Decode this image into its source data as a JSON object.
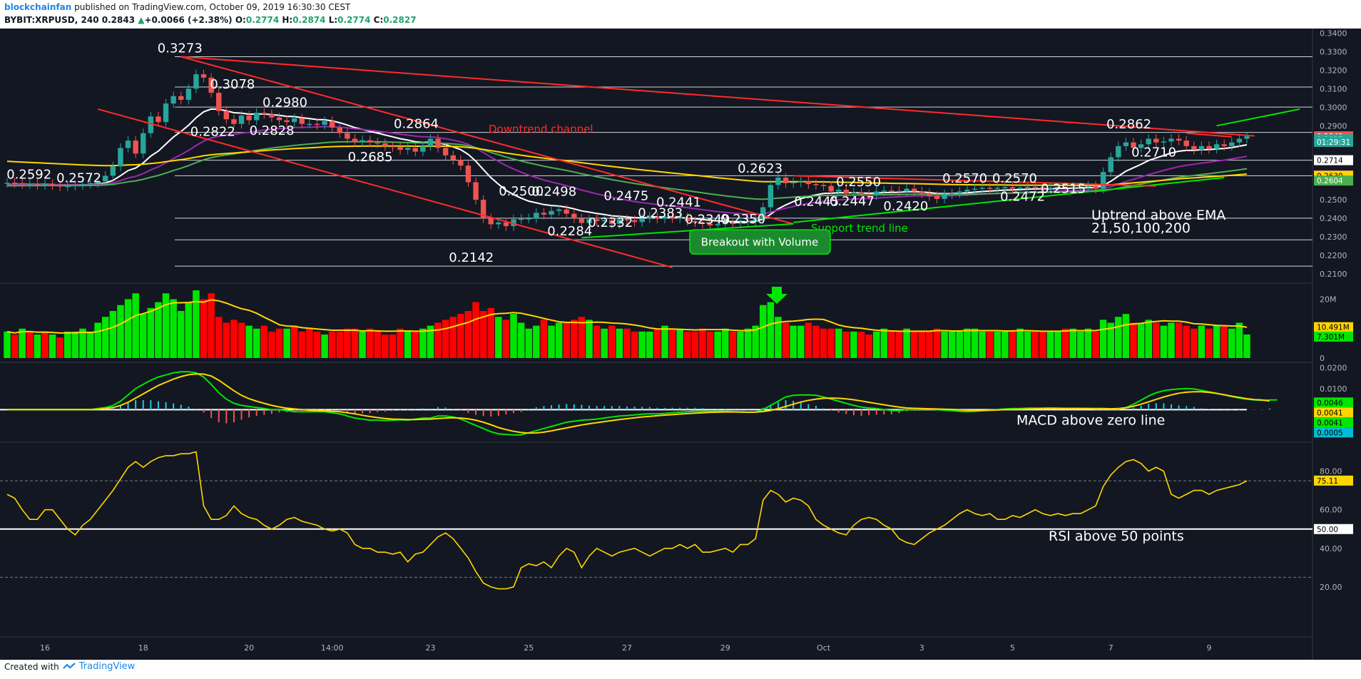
{
  "header": {
    "author": "blockchainfan",
    "published": "published on TradingView.com, October 09, 2019 16:30:30 CEST",
    "symbol": "BYBIT:XRPUSD, 240",
    "price": "0.2843",
    "change_arrow": "▲",
    "change": "+0.0066 (+2.38%)",
    "o_label": "O:",
    "o": "0.2774",
    "h_label": "H:",
    "h": "0.2874",
    "l_label": "L:",
    "l": "0.2774",
    "c_label": "C:",
    "c": "0.2827"
  },
  "footer": {
    "created_with": "Created with",
    "brand": "TradingView",
    "brand_icon": "tradingview-logo-icon"
  },
  "colors": {
    "background": "#131722",
    "up": "#26a69a",
    "down": "#ef5350",
    "vol_up": "#00e600",
    "vol_down": "#ff0000",
    "ema21": "#ffffff",
    "ema50": "#9c27b0",
    "ema100": "#4caf50",
    "ema200": "#ffd600",
    "trend_red": "#ff2b2b",
    "trend_green": "#00e600",
    "rsi": "#ffd600"
  },
  "chart_data": [
    {
      "type": "candlestick",
      "pane": "price",
      "ylim": [
        0.205,
        0.3425
      ],
      "y_ticks": [
        "0.3400",
        "0.3300",
        "0.3200",
        "0.3100",
        "0.3000",
        "0.2900",
        "0.2500",
        "0.2400",
        "0.2300",
        "0.2200",
        "0.2100"
      ],
      "x_ticks": [
        "16",
        "18",
        "20",
        "14:00",
        "23",
        "25",
        "27",
        "29",
        "Oct",
        "3",
        "5",
        "7",
        "9"
      ],
      "ohlc_close": [
        0.2592,
        0.259,
        0.2585,
        0.2588,
        0.258,
        0.2585,
        0.2578,
        0.2572,
        0.2575,
        0.258,
        0.2585,
        0.259,
        0.26,
        0.263,
        0.268,
        0.278,
        0.282,
        0.275,
        0.286,
        0.295,
        0.292,
        0.302,
        0.306,
        0.304,
        0.31,
        0.3178,
        0.316,
        0.3078,
        0.298,
        0.2935,
        0.291,
        0.2955,
        0.293,
        0.297,
        0.2962,
        0.2945,
        0.293,
        0.292,
        0.294,
        0.291,
        0.291,
        0.2905,
        0.2925,
        0.289,
        0.286,
        0.283,
        0.2812,
        0.2822,
        0.281,
        0.2805,
        0.279,
        0.2785,
        0.277,
        0.278,
        0.276,
        0.279,
        0.283,
        0.278,
        0.274,
        0.2715,
        0.2685,
        0.2595,
        0.25,
        0.24,
        0.2368,
        0.2378,
        0.2358,
        0.2395,
        0.2398,
        0.24,
        0.243,
        0.242,
        0.244,
        0.2448,
        0.2425,
        0.24,
        0.2375,
        0.2395,
        0.2385,
        0.239,
        0.237,
        0.2395,
        0.239,
        0.238,
        0.24,
        0.241,
        0.2398,
        0.241,
        0.24,
        0.2405,
        0.2385,
        0.2378,
        0.237,
        0.2362,
        0.2368,
        0.2375,
        0.2372,
        0.238,
        0.2385,
        0.2395,
        0.246,
        0.258,
        0.262,
        0.259,
        0.2595,
        0.26,
        0.2585,
        0.258,
        0.2575,
        0.2545,
        0.2555,
        0.2535,
        0.254,
        0.253,
        0.2525,
        0.2545,
        0.255,
        0.2548,
        0.2545,
        0.256,
        0.2545,
        0.2535,
        0.252,
        0.2505,
        0.253,
        0.2535,
        0.2545,
        0.2555,
        0.256,
        0.2565,
        0.256,
        0.2565,
        0.2568,
        0.256,
        0.2565,
        0.257,
        0.2568,
        0.256,
        0.2565,
        0.257,
        0.2565,
        0.257,
        0.257,
        0.2575,
        0.256,
        0.265,
        0.273,
        0.279,
        0.281,
        0.278,
        0.28,
        0.283,
        0.281,
        0.2815,
        0.283,
        0.282,
        0.279,
        0.277,
        0.279,
        0.2775,
        0.28,
        0.279,
        0.281,
        0.283,
        0.2843
      ],
      "horizontal_levels": [
        0.3273,
        0.3109,
        0.3001,
        0.2864,
        0.2714,
        0.263,
        0.2401,
        0.2284,
        0.2142
      ],
      "ema_last": {
        "EMA21": "0.2714",
        "EMA50": "0.2632",
        "EMA100": "0.2604",
        "EMA200": "0.2630"
      },
      "price_tags": [
        "0.2843",
        "0.2827",
        "01:29:31",
        "0.2714",
        "0.2632",
        "0.2630",
        "0.2604"
      ],
      "level_labels": [
        {
          "text": "0.3273",
          "x": 0.12,
          "y": 0.3273
        },
        {
          "text": "0.3078",
          "x": 0.16,
          "y": 0.3078
        },
        {
          "text": "0.2980",
          "x": 0.2,
          "y": 0.298
        },
        {
          "text": "0.2864",
          "x": 0.3,
          "y": 0.2864
        },
        {
          "text": "0.2822",
          "x": 0.145,
          "y": 0.2822
        },
        {
          "text": "0.2828",
          "x": 0.19,
          "y": 0.2828
        },
        {
          "text": "0.2685",
          "x": 0.265,
          "y": 0.2685
        },
        {
          "text": "0.2592",
          "x": 0.005,
          "y": 0.2592
        },
        {
          "text": "0.2572",
          "x": 0.043,
          "y": 0.2572
        },
        {
          "text": "0.2500",
          "x": 0.38,
          "y": 0.25
        },
        {
          "text": "0.2498",
          "x": 0.405,
          "y": 0.2498
        },
        {
          "text": "0.2475",
          "x": 0.46,
          "y": 0.2475
        },
        {
          "text": "0.2441",
          "x": 0.5,
          "y": 0.2441
        },
        {
          "text": "0.2383",
          "x": 0.486,
          "y": 0.2383
        },
        {
          "text": "0.2332",
          "x": 0.448,
          "y": 0.2332
        },
        {
          "text": "0.2284",
          "x": 0.417,
          "y": 0.2284
        },
        {
          "text": "0.2349",
          "x": 0.522,
          "y": 0.2349
        },
        {
          "text": "0.2350",
          "x": 0.549,
          "y": 0.235
        },
        {
          "text": "0.2142",
          "x": 0.342,
          "y": 0.2142
        },
        {
          "text": "0.2623",
          "x": 0.562,
          "y": 0.2623
        },
        {
          "text": "0.2550",
          "x": 0.637,
          "y": 0.255
        },
        {
          "text": "0.2445",
          "x": 0.605,
          "y": 0.2445
        },
        {
          "text": "0.2447",
          "x": 0.632,
          "y": 0.2447
        },
        {
          "text": "0.2420",
          "x": 0.673,
          "y": 0.242
        },
        {
          "text": "0.2570",
          "x": 0.718,
          "y": 0.257
        },
        {
          "text": "0.2570",
          "x": 0.756,
          "y": 0.257
        },
        {
          "text": "0.2472",
          "x": 0.762,
          "y": 0.2472
        },
        {
          "text": "0.2515",
          "x": 0.793,
          "y": 0.2515
        },
        {
          "text": "0.2862",
          "x": 0.843,
          "y": 0.2862
        },
        {
          "text": "0.2710",
          "x": 0.862,
          "y": 0.271
        }
      ],
      "annotations": {
        "downtrend": "Downtrend channel",
        "support": "Support trend line",
        "breakout": "Breakout with Volume",
        "uptrend_line1": "Uptrend above EMA",
        "uptrend_line2": "21,50,100,200"
      }
    },
    {
      "type": "bar",
      "pane": "volume",
      "y_ticks": [
        "20M",
        "0"
      ],
      "ylim": [
        0,
        24000000
      ],
      "tags": [
        "10.491M",
        "7.301M"
      ],
      "values": [
        9,
        8,
        10,
        9,
        8,
        9,
        8,
        7,
        9,
        9,
        10,
        9,
        12,
        14,
        16,
        18,
        20,
        22,
        15,
        17,
        19,
        22,
        20,
        16,
        19,
        23,
        20,
        22,
        14,
        12,
        13,
        12,
        11,
        10,
        11,
        9,
        10,
        10,
        11,
        9,
        10,
        9,
        8,
        9,
        9,
        10,
        10,
        9,
        10,
        9,
        8,
        8,
        10,
        9,
        9,
        10,
        11,
        12,
        13,
        14,
        15,
        16,
        19,
        16,
        17,
        14,
        13,
        15,
        12,
        10,
        11,
        13,
        11,
        12,
        12,
        13,
        14,
        13,
        11,
        10,
        11,
        10,
        10,
        9,
        9,
        9,
        10,
        11,
        10,
        10,
        9,
        9,
        10,
        9,
        9,
        10,
        9,
        9,
        10,
        11,
        18,
        19,
        14,
        12,
        11,
        11,
        12,
        11,
        10,
        10,
        10,
        9,
        9,
        9,
        8,
        9,
        10,
        9,
        9,
        10,
        9,
        9,
        9,
        10,
        9,
        9,
        9,
        10,
        10,
        9,
        9,
        9,
        9,
        9,
        10,
        9,
        9,
        9,
        9,
        9,
        10,
        10,
        9,
        10,
        9,
        13,
        12,
        14,
        15,
        12,
        12,
        13,
        12,
        11,
        12,
        12,
        11,
        10,
        11,
        10,
        11,
        11,
        10,
        12,
        8
      ],
      "up": [
        1,
        0,
        1,
        0,
        1,
        0,
        1,
        0,
        1,
        1,
        1,
        1,
        1,
        1,
        1,
        1,
        1,
        1,
        1,
        1,
        1,
        1,
        1,
        1,
        1,
        1,
        0,
        0,
        0,
        0,
        0,
        0,
        1,
        1,
        0,
        0,
        0,
        1,
        0,
        0,
        0,
        0,
        1,
        0,
        0,
        0,
        0,
        1,
        0,
        0,
        0,
        0,
        0,
        1,
        0,
        1,
        1,
        0,
        0,
        0,
        0,
        0,
        0,
        0,
        0,
        1,
        0,
        1,
        1,
        1,
        1,
        0,
        1,
        1,
        0,
        0,
        0,
        1,
        0,
        1,
        0,
        1,
        0,
        0,
        1,
        1,
        0,
        1,
        0,
        1,
        0,
        0,
        0,
        0,
        1,
        1,
        0,
        1,
        1,
        1,
        1,
        1,
        1,
        0,
        1,
        1,
        0,
        0,
        0,
        0,
        1,
        0,
        1,
        0,
        0,
        1,
        1,
        0,
        0,
        1,
        0,
        0,
        0,
        0,
        1,
        1,
        1,
        1,
        1,
        1,
        0,
        1,
        1,
        0,
        1,
        1,
        0,
        0,
        1,
        1,
        0,
        1,
        1,
        1,
        0,
        1,
        1,
        1,
        1,
        0,
        1,
        1,
        0,
        1,
        1,
        0,
        0,
        0,
        1,
        0,
        1,
        0,
        1,
        1,
        1
      ]
    },
    {
      "type": "line",
      "pane": "macd",
      "y_ticks": [
        "0.0200",
        "0.0100"
      ],
      "ylim": [
        -0.0155,
        0.0225
      ],
      "tags": [
        "0.0046",
        "0.0041",
        "0.0041",
        "0.0005"
      ],
      "macd": [
        0.0,
        0.0,
        0.0,
        0.0,
        0.0,
        0.0,
        0.0,
        0.0,
        0.0,
        0.0,
        0.0,
        0.0,
        0.0005,
        0.001,
        0.002,
        0.004,
        0.007,
        0.01,
        0.012,
        0.014,
        0.0155,
        0.0165,
        0.0175,
        0.018,
        0.018,
        0.0175,
        0.0155,
        0.012,
        0.008,
        0.005,
        0.003,
        0.002,
        0.0015,
        0.001,
        0.0005,
        0.0,
        0.0,
        -0.0005,
        -0.001,
        -0.001,
        -0.001,
        -0.001,
        -0.001,
        -0.0015,
        -0.002,
        -0.003,
        -0.004,
        -0.0045,
        -0.005,
        -0.005,
        -0.0052,
        -0.005,
        -0.0048,
        -0.005,
        -0.0045,
        -0.004,
        -0.004,
        -0.003,
        -0.003,
        -0.0035,
        -0.0045,
        -0.006,
        -0.0075,
        -0.009,
        -0.0105,
        -0.0115,
        -0.0118,
        -0.012,
        -0.012,
        -0.011,
        -0.01,
        -0.009,
        -0.008,
        -0.007,
        -0.006,
        -0.0055,
        -0.005,
        -0.0048,
        -0.0045,
        -0.004,
        -0.0035,
        -0.003,
        -0.0028,
        -0.0025,
        -0.0022,
        -0.002,
        -0.002,
        -0.0018,
        -0.0015,
        -0.0012,
        -0.001,
        -0.0008,
        -0.0008,
        -0.0008,
        -0.0008,
        -0.0008,
        -0.001,
        -0.0012,
        -0.0013,
        -0.0012,
        0.0,
        0.002,
        0.004,
        0.006,
        0.0068,
        0.007,
        0.007,
        0.0068,
        0.006,
        0.005,
        0.004,
        0.003,
        0.002,
        0.0012,
        0.0008,
        0.0005,
        0.0,
        -0.0005,
        -0.0005,
        0.0,
        0.0,
        0.0002,
        0.0002,
        0.0,
        -0.0003,
        -0.0005,
        -0.0008,
        -0.001,
        -0.0008,
        -0.0005,
        -0.0002,
        0.0,
        0.0003,
        0.0005,
        0.0005,
        0.0007,
        0.0007,
        0.0007,
        0.0008,
        0.0007,
        0.0006,
        0.0006,
        0.0006,
        0.0005,
        0.0004,
        0.0004,
        0.0003,
        0.0003,
        0.001,
        0.0025,
        0.0045,
        0.0065,
        0.008,
        0.009,
        0.0095,
        0.0098,
        0.01,
        0.0098,
        0.0092,
        0.0085,
        0.0078,
        0.007,
        0.0062,
        0.0055,
        0.005,
        0.0046,
        0.0044,
        0.0046,
        0.0046
      ],
      "signal": [
        0.0,
        0.0,
        0.0,
        0.0,
        0.0,
        0.0,
        0.0,
        0.0,
        0.0,
        0.0,
        0.0,
        0.0,
        0.0002,
        0.0005,
        0.001,
        0.002,
        0.0035,
        0.0055,
        0.0075,
        0.0095,
        0.0115,
        0.013,
        0.0145,
        0.0157,
        0.0166,
        0.017,
        0.0169,
        0.016,
        0.014,
        0.0115,
        0.009,
        0.0068,
        0.0052,
        0.004,
        0.003,
        0.002,
        0.0013,
        0.0007,
        0.0003,
        0.0,
        -0.0003,
        -0.0005,
        -0.0006,
        -0.0008,
        -0.001,
        -0.0015,
        -0.002,
        -0.0027,
        -0.0033,
        -0.0038,
        -0.0042,
        -0.0045,
        -0.0046,
        -0.0047,
        -0.0047,
        -0.0046,
        -0.0045,
        -0.0042,
        -0.004,
        -0.0039,
        -0.004,
        -0.0044,
        -0.005,
        -0.006,
        -0.0072,
        -0.0085,
        -0.0095,
        -0.0103,
        -0.0109,
        -0.0112,
        -0.0111,
        -0.0107,
        -0.0101,
        -0.0094,
        -0.0087,
        -0.008,
        -0.0073,
        -0.0067,
        -0.0062,
        -0.0057,
        -0.0052,
        -0.0047,
        -0.0043,
        -0.0039,
        -0.0035,
        -0.0032,
        -0.0029,
        -0.0026,
        -0.0024,
        -0.0021,
        -0.0019,
        -0.0017,
        -0.0015,
        -0.0013,
        -0.0012,
        -0.0011,
        -0.0011,
        -0.0011,
        -0.0012,
        -0.0012,
        -0.0009,
        -0.0004,
        0.0005,
        0.0015,
        0.0026,
        0.0036,
        0.0044,
        0.005,
        0.0054,
        0.0055,
        0.0054,
        0.0051,
        0.0047,
        0.0041,
        0.0035,
        0.0029,
        0.0023,
        0.0017,
        0.0012,
        0.0008,
        0.0006,
        0.0005,
        0.0004,
        0.0003,
        0.0002,
        0.0001,
        -0.0001,
        -0.0003,
        -0.0004,
        -0.0004,
        -0.0003,
        -0.0002,
        0.0,
        0.0001,
        0.0002,
        0.0003,
        0.0004,
        0.0005,
        0.0005,
        0.0005,
        0.0005,
        0.0005,
        0.0005,
        0.0005,
        0.0005,
        0.0005,
        0.0004,
        0.0005,
        0.0009,
        0.0016,
        0.0026,
        0.0037,
        0.0049,
        0.006,
        0.007,
        0.0078,
        0.0083,
        0.0085,
        0.0085,
        0.0082,
        0.0077,
        0.0071,
        0.0064,
        0.0058,
        0.0052,
        0.0048,
        0.0046,
        0.0041
      ],
      "annotation": "MACD above zero line"
    },
    {
      "type": "line",
      "pane": "rsi",
      "y_ticks": [
        "80.00",
        "60.00",
        "40.00",
        "20.00"
      ],
      "ylim": [
        10,
        95
      ],
      "levels": [
        75,
        50,
        25
      ],
      "tags": [
        "75.11",
        "50.00"
      ],
      "values": [
        68,
        66,
        60,
        55,
        55,
        60,
        60,
        55,
        50,
        47,
        52,
        55,
        60,
        65,
        70,
        76,
        82,
        85,
        82,
        85,
        87,
        88,
        88,
        89,
        89,
        90,
        62,
        55,
        55,
        57,
        62,
        58,
        56,
        55,
        52,
        50,
        52,
        55,
        56,
        54,
        53,
        52,
        50,
        49,
        50,
        48,
        42,
        40,
        40,
        38,
        38,
        37,
        38,
        33,
        37,
        38,
        42,
        46,
        48,
        45,
        40,
        35,
        28,
        22,
        20,
        19,
        19,
        20,
        30,
        32,
        31,
        33,
        30,
        36,
        40,
        38,
        30,
        36,
        40,
        38,
        36,
        38,
        39,
        40,
        38,
        36,
        38,
        40,
        40,
        42,
        40,
        42,
        38,
        38,
        39,
        40,
        38,
        42,
        42,
        45,
        65,
        70,
        68,
        64,
        66,
        65,
        62,
        55,
        52,
        50,
        48,
        47,
        52,
        55,
        56,
        55,
        52,
        50,
        45,
        43,
        42,
        45,
        48,
        50,
        52,
        55,
        58,
        60,
        58,
        57,
        58,
        55,
        55,
        57,
        56,
        58,
        60,
        58,
        57,
        58,
        57,
        58,
        58,
        60,
        62,
        72,
        78,
        82,
        85,
        86,
        84,
        80,
        82,
        80,
        68,
        66,
        68,
        70,
        70,
        68,
        70,
        71,
        72,
        73,
        75
      ],
      "annotation": "RSI above 50 points"
    }
  ]
}
